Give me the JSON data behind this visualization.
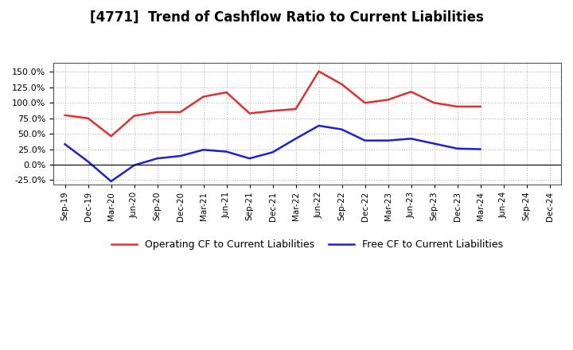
{
  "title": "[4771]  Trend of Cashflow Ratio to Current Liabilities",
  "x_labels": [
    "Sep-19",
    "Dec-19",
    "Mar-20",
    "Jun-20",
    "Sep-20",
    "Dec-20",
    "Mar-21",
    "Jun-21",
    "Sep-21",
    "Dec-21",
    "Mar-22",
    "Jun-22",
    "Sep-22",
    "Dec-22",
    "Mar-23",
    "Jun-23",
    "Sep-23",
    "Dec-23",
    "Mar-24",
    "Jun-24",
    "Sep-24",
    "Dec-24"
  ],
  "operating_cf": [
    0.8,
    0.75,
    0.46,
    0.79,
    0.85,
    0.85,
    1.1,
    1.17,
    0.83,
    0.87,
    0.9,
    1.51,
    1.3,
    1.0,
    1.05,
    1.18,
    1.0,
    0.94,
    0.94,
    null,
    null,
    null
  ],
  "free_cf": [
    0.33,
    0.05,
    -0.27,
    -0.01,
    0.1,
    0.14,
    0.24,
    0.21,
    0.1,
    0.2,
    0.42,
    0.63,
    0.57,
    0.39,
    0.39,
    0.42,
    0.34,
    0.26,
    0.25,
    null,
    null,
    null
  ],
  "operating_color": "#e03030",
  "free_color": "#2020d0",
  "ylim_low": -0.32,
  "ylim_high": 1.65,
  "yticks": [
    -0.25,
    0.0,
    0.25,
    0.5,
    0.75,
    1.0,
    1.25,
    1.5
  ],
  "legend_labels": [
    "Operating CF to Current Liabilities",
    "Free CF to Current Liabilities"
  ],
  "background_color": "#ffffff",
  "grid_color": "#aaaaaa"
}
